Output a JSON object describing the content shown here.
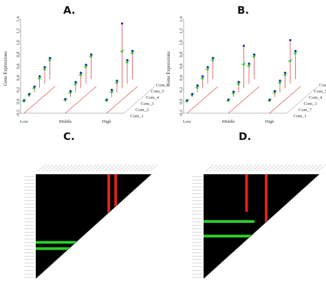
{
  "colors": {
    "background": "#ffffff",
    "heatmap_bg": "#000000",
    "hit_red": "#e0231c",
    "hit_green": "#2ccf2c",
    "green_line": "#3cc83c",
    "red_line": "#d62828",
    "blue_point": "#1f2fa8",
    "frame": "#777777"
  },
  "panels": [
    {
      "id": "A",
      "label": "A."
    },
    {
      "id": "B",
      "label": "B."
    },
    {
      "id": "C",
      "label": "C."
    },
    {
      "id": "D",
      "label": "D."
    }
  ],
  "chart_data": [
    {
      "panel": "A",
      "type": "scatter",
      "title": "",
      "ylabel": "Gene Expressions",
      "x_ticks": [
        "Low",
        "Middle",
        "High"
      ],
      "y_ticks": [
        "-0.2",
        "0.0",
        "0.2",
        "0.4",
        "0.6",
        "0.8",
        "1.0",
        "1.2",
        "1.4"
      ],
      "ylim": [
        -0.2,
        1.4
      ],
      "communities": [
        "Com_1",
        "Com_2",
        "Com_3",
        "Com_4",
        "Com_5",
        "Com_6"
      ],
      "series": [
        {
          "community": "Com_1",
          "low": [
            0.02,
            0.0
          ],
          "middle": [
            0.04,
            0.02
          ],
          "high": [
            0.03,
            0.01
          ]
        },
        {
          "community": "Com_2",
          "low": [
            0.05,
            0.03
          ],
          "middle": [
            0.1,
            0.07
          ],
          "high": [
            0.12,
            0.08
          ]
        },
        {
          "community": "Com_3",
          "low": [
            0.1,
            0.07
          ],
          "middle": [
            0.18,
            0.14
          ],
          "high": [
            0.2,
            0.16
          ]
        },
        {
          "community": "Com_4",
          "low": [
            0.2,
            0.16
          ],
          "middle": [
            0.26,
            0.22
          ],
          "high": [
            1.1,
            0.62
          ]
        },
        {
          "community": "Com_5",
          "low": [
            0.28,
            0.24
          ],
          "middle": [
            0.32,
            0.28
          ],
          "high": [
            0.4,
            0.36
          ]
        },
        {
          "community": "Com_6",
          "low": [
            0.36,
            0.32
          ],
          "middle": [
            0.42,
            0.38
          ],
          "high": [
            0.48,
            0.44
          ]
        }
      ]
    },
    {
      "panel": "B",
      "type": "scatter",
      "title": "",
      "ylabel": "Gene Expressions",
      "x_ticks": [
        "Low",
        "Middle",
        "High"
      ],
      "y_ticks": [
        "-0.2",
        "0.0",
        "0.2",
        "0.4",
        "0.6",
        "0.8",
        "1.0",
        "1.2",
        "1.4"
      ],
      "ylim": [
        -0.2,
        1.4
      ],
      "communities": [
        "Com_1",
        "Com_7",
        "Com_3",
        "Com_4",
        "Com_5",
        "Com_6"
      ],
      "series": [
        {
          "community": "Com_1",
          "low": [
            0.02,
            0.0
          ],
          "middle": [
            0.03,
            0.01
          ],
          "high": [
            0.03,
            0.01
          ]
        },
        {
          "community": "Com_7",
          "low": [
            0.05,
            0.03
          ],
          "middle": [
            0.09,
            0.06
          ],
          "high": [
            0.1,
            0.07
          ]
        },
        {
          "community": "Com_3",
          "low": [
            0.12,
            0.08
          ],
          "middle": [
            0.18,
            0.14
          ],
          "high": [
            0.2,
            0.16
          ]
        },
        {
          "community": "Com_4",
          "low": [
            0.2,
            0.16
          ],
          "middle": [
            0.72,
            0.4
          ],
          "high": [
            0.26,
            0.22
          ]
        },
        {
          "community": "Com_5",
          "low": [
            0.28,
            0.24
          ],
          "middle": [
            0.34,
            0.3
          ],
          "high": [
            0.74,
            0.38
          ]
        },
        {
          "community": "Com_6",
          "low": [
            0.36,
            0.32
          ],
          "middle": [
            0.42,
            0.38
          ],
          "high": [
            0.48,
            0.44
          ]
        }
      ]
    },
    {
      "panel": "C",
      "type": "heatmap",
      "title": "",
      "description_values": {
        "red_columns": [
          0.62,
          0.68
        ],
        "green_rows": [
          0.64,
          0.7
        ]
      }
    },
    {
      "panel": "D",
      "type": "heatmap",
      "title": "",
      "description_values": {
        "red_columns": [
          0.36,
          0.53
        ],
        "green_rows": [
          0.44,
          0.58
        ]
      }
    }
  ]
}
